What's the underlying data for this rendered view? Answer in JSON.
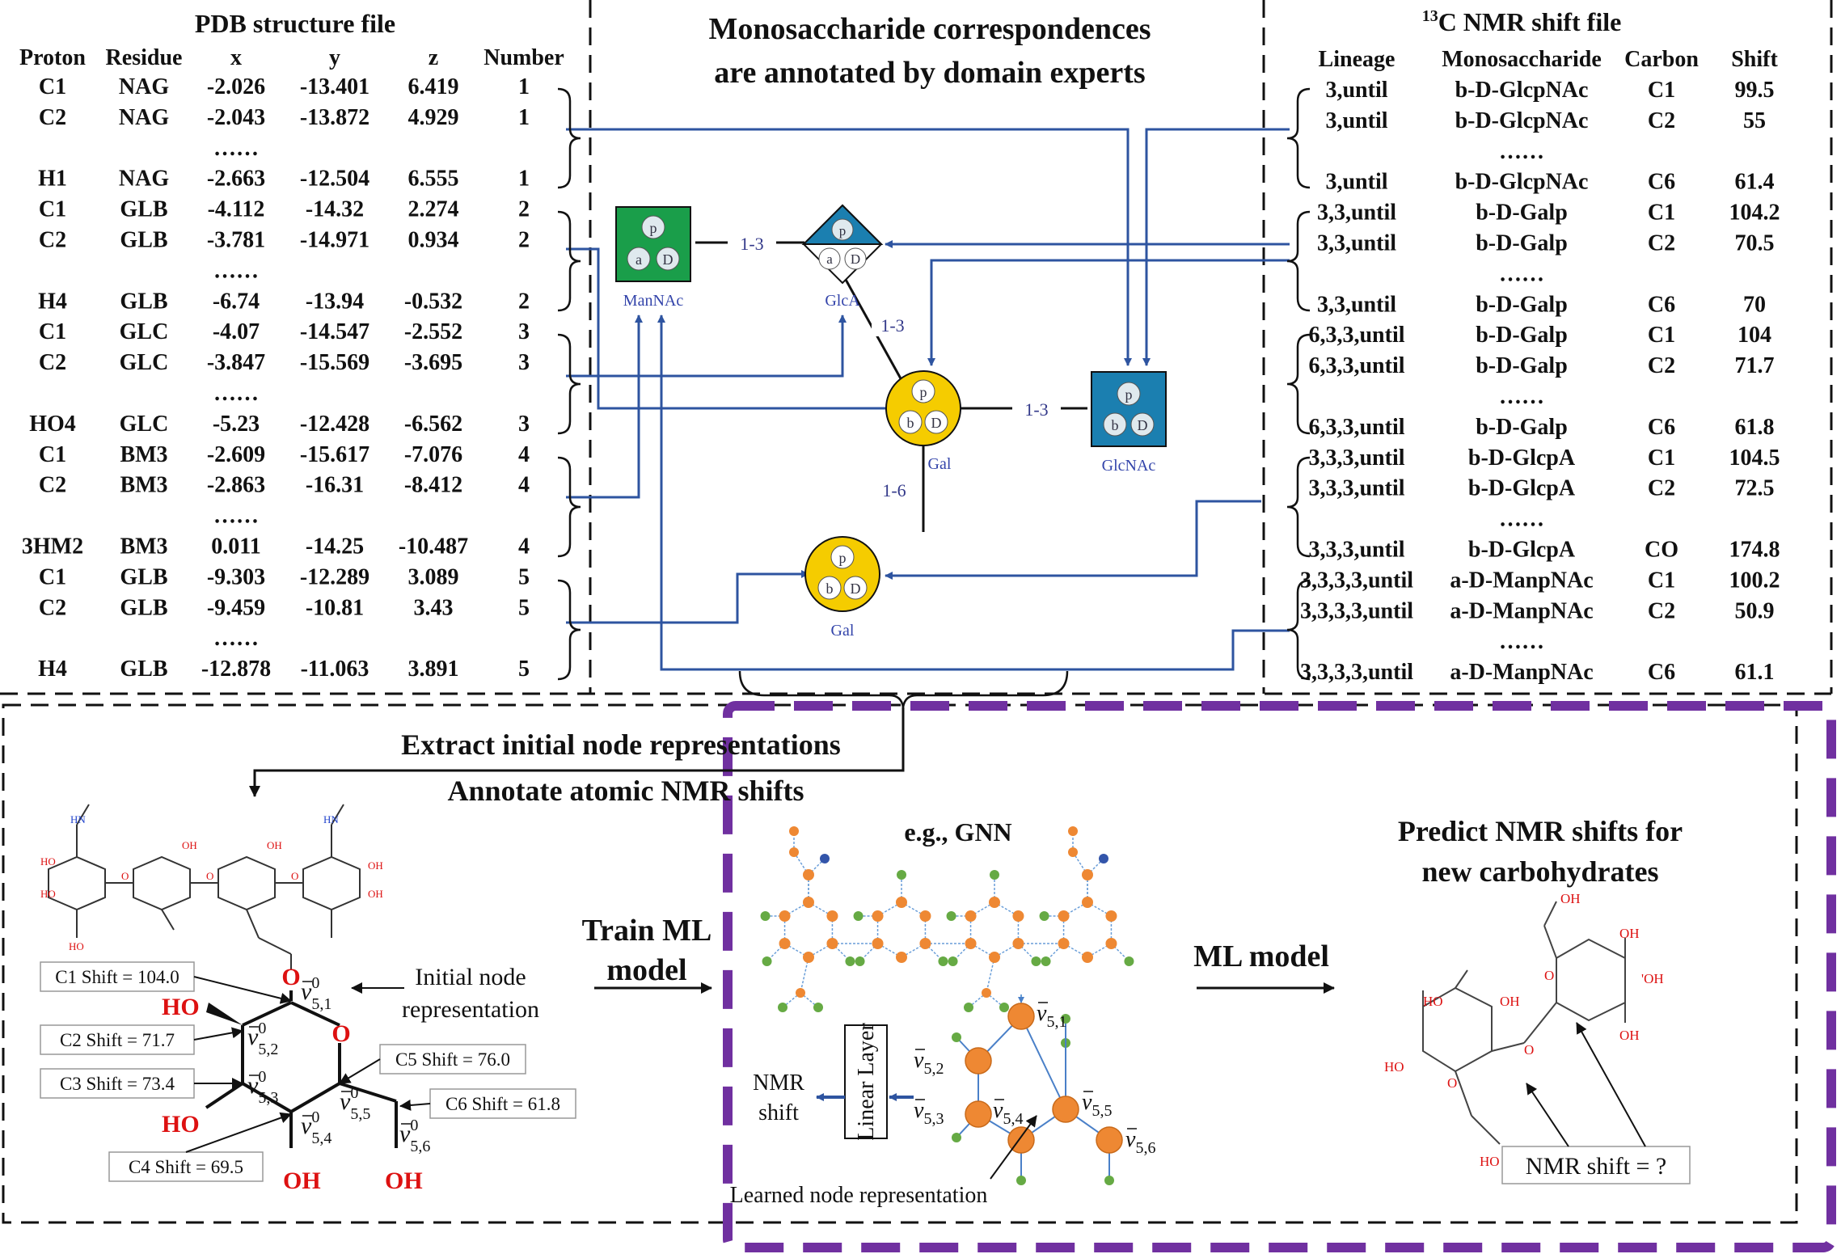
{
  "pdb": {
    "title": "PDB structure file",
    "headers": [
      "Proton",
      "Residue",
      "x",
      "y",
      "z",
      "Number"
    ],
    "rows": [
      [
        "C1",
        "NAG",
        "-2.026",
        "-13.401",
        "6.419",
        "1"
      ],
      [
        "C2",
        "NAG",
        "-2.043",
        "-13.872",
        "4.929",
        "1"
      ],
      [
        "……",
        "",
        "",
        "",
        "",
        ""
      ],
      [
        "H1",
        "NAG",
        "-2.663",
        "-12.504",
        "6.555",
        "1"
      ],
      [
        "C1",
        "GLB",
        "-4.112",
        "-14.32",
        "2.274",
        "2"
      ],
      [
        "C2",
        "GLB",
        "-3.781",
        "-14.971",
        "0.934",
        "2"
      ],
      [
        "……",
        "",
        "",
        "",
        "",
        ""
      ],
      [
        "H4",
        "GLB",
        "-6.74",
        "-13.94",
        "-0.532",
        "2"
      ],
      [
        "C1",
        "GLC",
        "-4.07",
        "-14.547",
        "-2.552",
        "3"
      ],
      [
        "C2",
        "GLC",
        "-3.847",
        "-15.569",
        "-3.695",
        "3"
      ],
      [
        "……",
        "",
        "",
        "",
        "",
        ""
      ],
      [
        "HO4",
        "GLC",
        "-5.23",
        "-12.428",
        "-6.562",
        "3"
      ],
      [
        "C1",
        "BM3",
        "-2.609",
        "-15.617",
        "-7.076",
        "4"
      ],
      [
        "C2",
        "BM3",
        "-2.863",
        "-16.31",
        "-8.412",
        "4"
      ],
      [
        "……",
        "",
        "",
        "",
        "",
        ""
      ],
      [
        "3HM2",
        "BM3",
        "0.011",
        "-14.25",
        "-10.487",
        "4"
      ],
      [
        "C1",
        "GLB",
        "-9.303",
        "-12.289",
        "3.089",
        "5"
      ],
      [
        "C2",
        "GLB",
        "-9.459",
        "-10.81",
        "3.43",
        "5"
      ],
      [
        "……",
        "",
        "",
        "",
        "",
        ""
      ],
      [
        "H4",
        "GLB",
        "-12.878",
        "-11.063",
        "3.891",
        "5"
      ]
    ]
  },
  "middle": {
    "title_line1": "Monosaccharide correspondences",
    "title_line2": "are annotated by domain experts",
    "ring_p": "p",
    "letters": {
      "a": "a",
      "b": "b",
      "D": "D"
    },
    "labels": {
      "mannac": "ManNAc",
      "glca": "GlcA",
      "gal1": "Gal",
      "glcnac": "GlcNAc",
      "gal2": "Gal"
    },
    "links": {
      "l1": "1-3",
      "l2": "1-3",
      "l3": "1-3",
      "l4": "1-6"
    },
    "colors": {
      "green": "#1a9e4a",
      "blue": "#1b7fb0",
      "yellow": "#f5cc00",
      "arrow": "#2e54a0",
      "link_text": "#33398a",
      "label_text": "#3344aa"
    }
  },
  "nmr": {
    "title_sup": "13",
    "title_rest": "C NMR shift file",
    "headers": [
      "Lineage",
      "Monosaccharide",
      "Carbon",
      "Shift"
    ],
    "rows": [
      [
        "3,until",
        "b-D-GlcpNAc",
        "C1",
        "99.5"
      ],
      [
        "3,until",
        "b-D-GlcpNAc",
        "C2",
        "55"
      ],
      [
        "",
        "……",
        "",
        ""
      ],
      [
        "3,until",
        "b-D-GlcpNAc",
        "C6",
        "61.4"
      ],
      [
        "3,3,until",
        "b-D-Galp",
        "C1",
        "104.2"
      ],
      [
        "3,3,until",
        "b-D-Galp",
        "C2",
        "70.5"
      ],
      [
        "",
        "……",
        "",
        ""
      ],
      [
        "3,3,until",
        "b-D-Galp",
        "C6",
        "70"
      ],
      [
        "6,3,3,until",
        "b-D-Galp",
        "C1",
        "104"
      ],
      [
        "6,3,3,until",
        "b-D-Galp",
        "C2",
        "71.7"
      ],
      [
        "",
        "……",
        "",
        ""
      ],
      [
        "6,3,3,until",
        "b-D-Galp",
        "C6",
        "61.8"
      ],
      [
        "3,3,3,until",
        "b-D-GlcpA",
        "C1",
        "104.5"
      ],
      [
        "3,3,3,until",
        "b-D-GlcpA",
        "C2",
        "72.5"
      ],
      [
        "",
        "……",
        "",
        ""
      ],
      [
        "3,3,3,until",
        "b-D-GlcpA",
        "CO",
        "174.8"
      ],
      [
        "3,3,3,3,until",
        "a-D-ManpNAc",
        "C1",
        "100.2"
      ],
      [
        "3,3,3,3,until",
        "a-D-ManpNAc",
        "C2",
        "50.9"
      ],
      [
        "",
        "……",
        "",
        ""
      ],
      [
        "3,3,3,3,until",
        "a-D-ManpNAc",
        "C6",
        "61.1"
      ]
    ]
  },
  "bottom": {
    "extract": "Extract initial node representations",
    "annotate": "Annotate atomic NMR shifts",
    "train_line1": "Train ML",
    "train_line2": "model",
    "gnn_label": "e.g., GNN",
    "linear_layer": "Linear Layer",
    "nmr_shift_line1": "NMR",
    "nmr_shift_line2": "shift",
    "learned_node": "Learned node representation",
    "ml_model": "ML model",
    "predict_line1": "Predict NMR shifts for",
    "predict_line2": "new carbohydrates",
    "nmr_question": "NMR shift = ?",
    "initial_node_line1": "Initial node",
    "initial_node_line2": "representation",
    "shift_boxes": [
      "C1 Shift = 104.0",
      "C2 Shift = 71.7",
      "C3 Shift = 73.4",
      "C4 Shift = 69.5",
      "C5 Shift = 76.0",
      "C6 Shift = 61.8"
    ],
    "atom_labels": {
      "ho": "HO",
      "oh": "OH",
      "o": "O"
    },
    "node_sub": [
      "5,1",
      "5,2",
      "5,3",
      "5,4",
      "5,5",
      "5,6"
    ],
    "vec_symbol": "v",
    "superscript0": "0",
    "mol_labels": {
      "oh": "OH",
      "ho": "HO",
      "o": "O",
      "ohh": "'OH",
      "ho_small": "HO"
    },
    "colors": {
      "purple": "#7030a0",
      "orange": "#ee8833",
      "green_node": "#66aa44",
      "blue_node": "#3355aa",
      "red": "#dd1111"
    }
  }
}
